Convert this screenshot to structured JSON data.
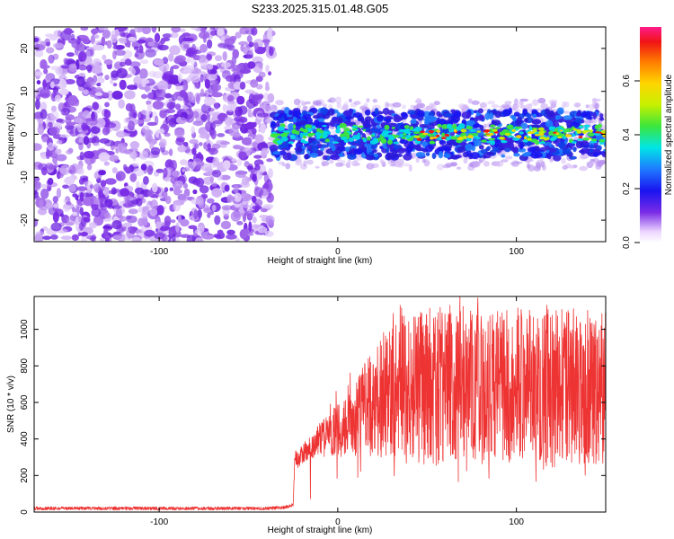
{
  "title": "S233.2025.315.01.48.G05",
  "chart_data": [
    {
      "type": "heatmap",
      "xlabel": "Height of straight line (km)",
      "ylabel": "Frequency (Hz)",
      "xlim": [
        -170,
        150
      ],
      "ylim": [
        -25,
        25
      ],
      "xticks": [
        -100,
        0,
        100
      ],
      "yticks": [
        -20,
        -10,
        0,
        10,
        20
      ],
      "xtick_labels": [
        "-100",
        "0",
        "100"
      ],
      "ytick_labels": [
        "-20",
        "-10",
        "0",
        "10",
        "20"
      ],
      "noise_region_x": [
        -170,
        -37
      ],
      "signal_region_x": [
        -37,
        150
      ],
      "signal_band_hz": [
        -5,
        5
      ],
      "grid": false,
      "colorbar": {
        "label": "Normalized spectral amplitude",
        "range": [
          0.0,
          0.8
        ],
        "ticks": [
          0.0,
          0.2,
          0.4,
          0.6
        ],
        "tick_labels": [
          "0.0",
          "0.2",
          "0.4",
          "0.6"
        ],
        "colormap": "rainbow"
      }
    },
    {
      "type": "line",
      "xlabel": "Height of straight line (km)",
      "ylabel": "SNR (10 * v/v)",
      "xlim": [
        -170,
        150
      ],
      "ylim": [
        0,
        1180
      ],
      "xticks": [
        -100,
        0,
        100
      ],
      "yticks": [
        0,
        200,
        400,
        600,
        800,
        1000
      ],
      "xtick_labels": [
        "-100",
        "0",
        "100"
      ],
      "ytick_labels": [
        "0",
        "200",
        "400",
        "600",
        "800",
        "1000"
      ],
      "color": "#ee3333",
      "grid": false,
      "series": [
        {
          "x": [
            -170,
            -150,
            -120,
            -100,
            -80,
            -60,
            -40,
            -30,
            -25,
            -24,
            -22,
            -20,
            -15,
            -10,
            -5,
            0,
            5,
            10,
            15,
            20,
            25,
            30,
            40,
            50,
            60,
            65,
            70,
            80,
            90,
            100,
            110,
            120,
            130,
            140,
            150
          ],
          "y": [
            20,
            20,
            20,
            20,
            20,
            20,
            20,
            25,
            40,
            300,
            280,
            320,
            350,
            400,
            420,
            450,
            480,
            520,
            560,
            600,
            640,
            660,
            680,
            690,
            700,
            720,
            700,
            690,
            700,
            690,
            700,
            700,
            690,
            690,
            700
          ]
        }
      ]
    }
  ]
}
